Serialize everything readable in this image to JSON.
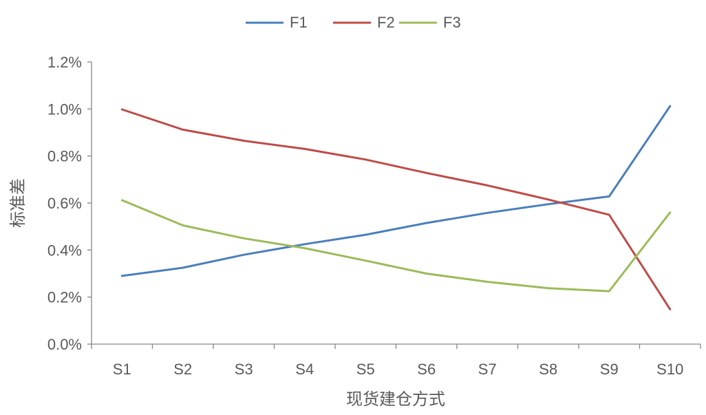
{
  "chart_data": {
    "type": "line",
    "xlabel": "现货建仓方式",
    "ylabel": "标准差",
    "categories": [
      "S1",
      "S2",
      "S3",
      "S4",
      "S5",
      "S6",
      "S7",
      "S8",
      "S9",
      "S10"
    ],
    "ylim": [
      0,
      1.2
    ],
    "yticks": [
      "0.0%",
      "0.2%",
      "0.4%",
      "0.6%",
      "0.8%",
      "1.0%",
      "1.2%"
    ],
    "y_unit": "%",
    "grid": false,
    "legend_position": "top",
    "series": [
      {
        "name": "F1",
        "color": "#4A7EBB",
        "values": [
          0.29,
          0.325,
          0.38,
          0.425,
          0.465,
          0.515,
          0.558,
          0.595,
          0.628,
          1.012
        ]
      },
      {
        "name": "F2",
        "color": "#BE4B48",
        "values": [
          0.998,
          0.912,
          0.865,
          0.83,
          0.785,
          0.728,
          0.675,
          0.615,
          0.55,
          0.148
        ]
      },
      {
        "name": "F3",
        "color": "#9BBB59",
        "values": [
          0.612,
          0.505,
          0.45,
          0.408,
          0.355,
          0.3,
          0.265,
          0.238,
          0.225,
          0.56
        ]
      }
    ]
  }
}
